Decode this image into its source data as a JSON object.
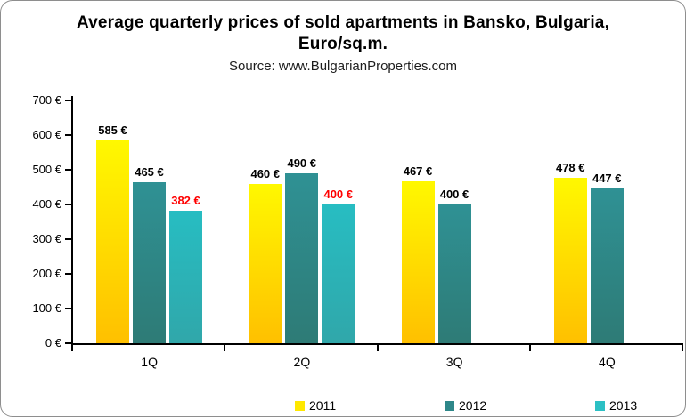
{
  "frame": {
    "border_color": "#8e8e8e",
    "background_color": "#ffffff"
  },
  "header": {
    "title_lines": [
      "Average quarterly prices of sold apartments in Bansko, Bulgaria,",
      "Euro/sq.m."
    ],
    "source": "Source: www.BulgarianProperties.com"
  },
  "chart_data": {
    "type": "bar",
    "title": "Average quarterly prices of sold apartments in Bansko, Bulgaria, Euro/sq.m.",
    "subtitle": "Source: www.BulgarianProperties.com",
    "categories": [
      "1Q",
      "2Q",
      "3Q",
      "4Q"
    ],
    "series": [
      {
        "name": "2011",
        "values": [
          585,
          460,
          467,
          478
        ],
        "color_top": "#fff800",
        "color_bottom": "#ffc000",
        "legend_color": "#ffe800",
        "label_color": "#000000"
      },
      {
        "name": "2012",
        "values": [
          465,
          490,
          400,
          447
        ],
        "color_top": "#2f9194",
        "color_bottom": "#2e7b76",
        "legend_color": "#2e8789",
        "label_color": "#000000"
      },
      {
        "name": "2013",
        "values": [
          382,
          400,
          null,
          null
        ],
        "color_top": "#27bdc2",
        "color_bottom": "#30a7aa",
        "legend_color": "#2cc0c4",
        "label_color": "#ff0000"
      }
    ],
    "value_label_format": "{v} €",
    "y_axis": {
      "min": 0,
      "max": 700,
      "tick_step": 100,
      "tick_format": "{v} €"
    },
    "xlabel": "",
    "ylabel": "",
    "grid": false,
    "legend_position": "bottom"
  }
}
